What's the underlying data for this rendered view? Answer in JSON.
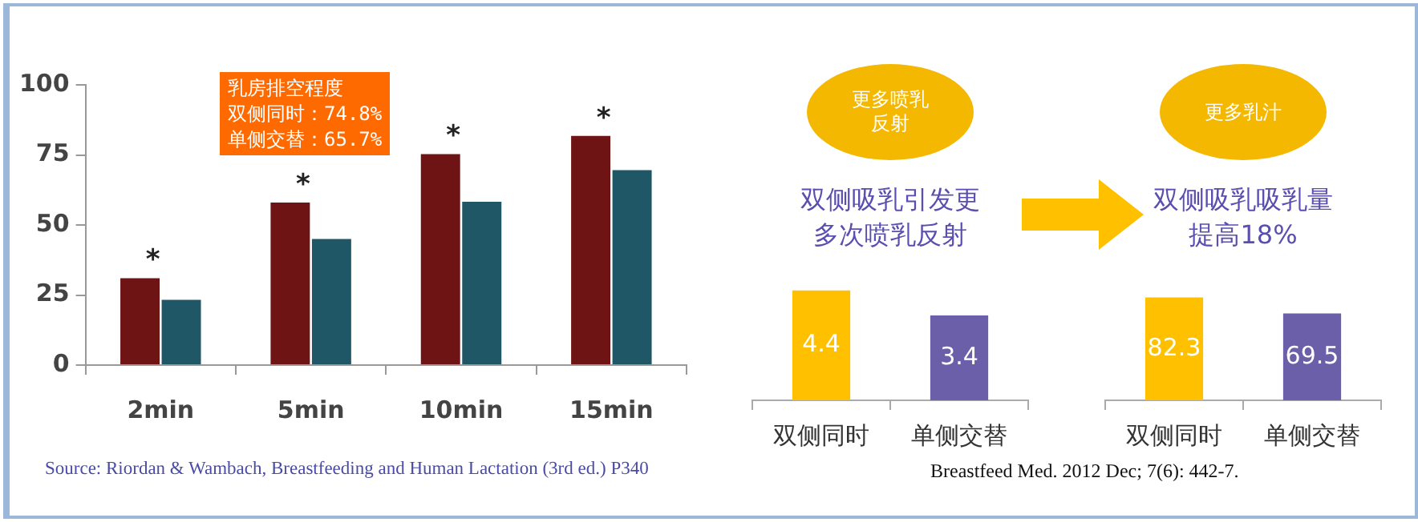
{
  "chart_data": [
    {
      "type": "bar",
      "categories": [
        "2min",
        "5min",
        "10min",
        "15min"
      ],
      "series": [
        {
          "color": "#6e1414",
          "values": [
            31,
            58,
            75.3,
            81.8
          ]
        },
        {
          "color": "#1f5766",
          "values": [
            23.3,
            45,
            58.3,
            69.6
          ]
        }
      ],
      "ylim": [
        0,
        100
      ],
      "yticks": [
        0,
        25,
        50,
        75,
        100
      ],
      "annotations": [
        "乳房排空程度",
        "双侧同时：74.8%",
        "单侧交替：65.7%",
        "Source: Riordan & Wambach, Breastfeeding and Human Lactation (3rd ed.) P340",
        {
          "text": "*",
          "x": "2min",
          "y": 31
        },
        {
          "text": "*",
          "x": "5min",
          "y": 58
        },
        {
          "text": "*",
          "x": "10min",
          "y": 75.3
        },
        {
          "text": "*",
          "x": "15min",
          "y": 81.8
        }
      ]
    },
    {
      "type": "bar",
      "title": "更多喷乳反射",
      "subtitle": "双侧吸乳引发更多次喷乳反射",
      "categories": [
        "双侧同时",
        "单侧交替"
      ],
      "values": [
        4.4,
        3.4
      ],
      "colors": [
        "#ffc000",
        "#6a5fa8"
      ],
      "data_labels": true,
      "tick_labels": "x",
      "annotations": [
        "Breastfeed Med. 2012 Dec; 7(6): 442-7."
      ]
    },
    {
      "type": "bar",
      "title": "更多乳汁",
      "subtitle": "双侧吸乳吸乳量提高18%",
      "categories": [
        "双侧同时",
        "单侧交替"
      ],
      "values": [
        82.3,
        69.5
      ],
      "colors": [
        "#ffc000",
        "#6a5fa8"
      ],
      "data_labels": true,
      "tick_labels": "x"
    }
  ]
}
